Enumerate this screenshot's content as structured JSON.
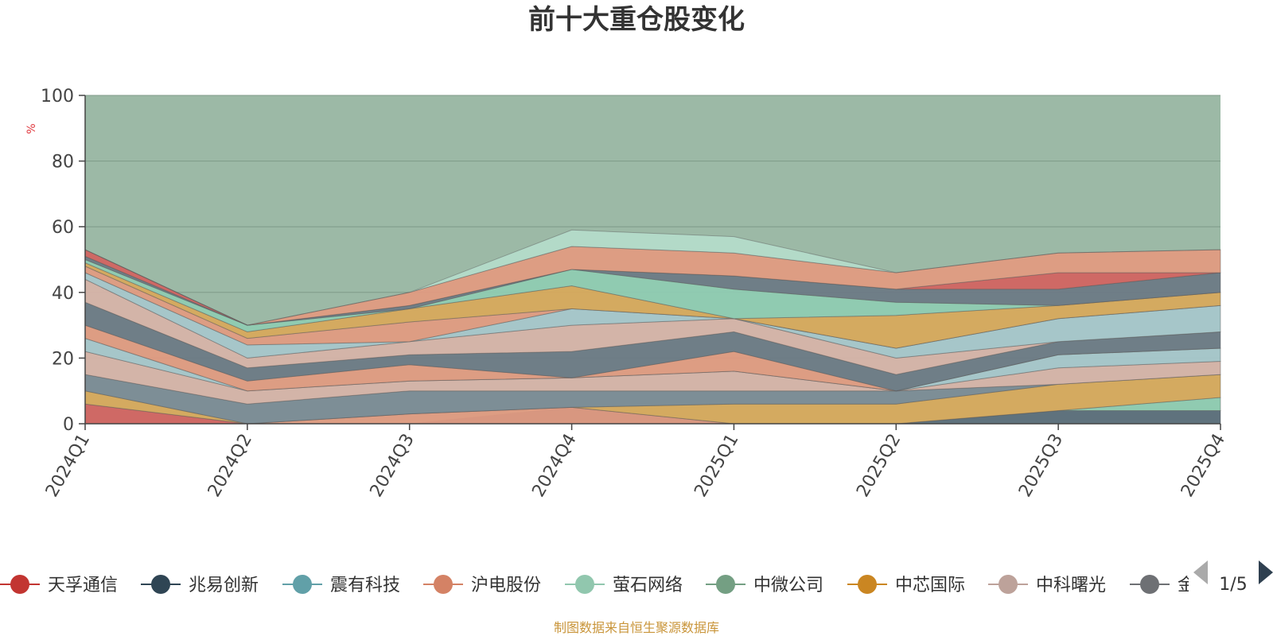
{
  "colors": {
    "background": "#9cb9a6",
    "axis": "#444444",
    "grid": "#7f9a89",
    "unit": "#e0383e",
    "source": "#c9953a",
    "pager_active": "#2f4050",
    "pager_inactive": "#aaaaaa"
  },
  "chart_data": {
    "type": "area",
    "title": "前十大重仓股变化",
    "ylabel": "%",
    "ylim": [
      0,
      100
    ],
    "yticks": [
      0,
      20,
      40,
      60,
      80,
      100
    ],
    "categories": [
      "2024Q1",
      "2024Q2",
      "2024Q3",
      "2024Q4",
      "2025Q1",
      "2025Q2",
      "2025Q3",
      "2025Q4"
    ],
    "bands": [
      {
        "color": "#d4625f",
        "lower": [
          0,
          0,
          0,
          0,
          0,
          0,
          0,
          0
        ],
        "upper": [
          6,
          0,
          0,
          0,
          0,
          0,
          0,
          0
        ]
      },
      {
        "color": "#5a6b7a",
        "lower": [
          0,
          0,
          0,
          0,
          0,
          0,
          0,
          0
        ],
        "upper": [
          0,
          0,
          0,
          5,
          0,
          0,
          4,
          4
        ]
      },
      {
        "color": "#8fccb2",
        "lower": [
          0,
          0,
          0,
          0,
          0,
          0,
          4,
          4
        ],
        "upper": [
          0,
          0,
          0,
          0,
          0,
          0,
          4,
          8
        ]
      },
      {
        "color": "#e39a80",
        "lower": [
          0,
          0,
          0,
          0,
          0,
          0,
          0,
          0
        ],
        "upper": [
          0,
          0,
          3,
          5,
          0,
          0,
          0,
          0
        ]
      },
      {
        "color": "#d9a85a",
        "lower": [
          6,
          0,
          3,
          5,
          0,
          0,
          4,
          8
        ],
        "upper": [
          10,
          0,
          3,
          5,
          6,
          6,
          12,
          15
        ]
      },
      {
        "color": "#7b8a95",
        "lower": [
          10,
          0,
          3,
          5,
          6,
          6,
          12,
          15
        ],
        "upper": [
          15,
          6,
          10,
          10,
          10,
          10,
          12,
          15
        ]
      },
      {
        "color": "#d8b3a8",
        "lower": [
          15,
          6,
          10,
          10,
          10,
          10,
          12,
          15
        ],
        "upper": [
          22,
          10,
          13,
          14,
          16,
          10,
          17,
          19
        ]
      },
      {
        "color": "#a7c7cc",
        "lower": [
          22,
          10,
          13,
          14,
          16,
          10,
          17,
          19
        ],
        "upper": [
          26,
          10,
          13,
          14,
          16,
          10,
          21,
          23
        ]
      },
      {
        "color": "#e39a80",
        "lower": [
          26,
          10,
          13,
          14,
          16,
          10,
          21,
          23
        ],
        "upper": [
          30,
          13,
          18,
          14,
          22,
          10,
          21,
          23
        ]
      },
      {
        "color": "#6b7884",
        "lower": [
          30,
          13,
          18,
          14,
          22,
          10,
          21,
          23
        ],
        "upper": [
          37,
          17,
          21,
          22,
          28,
          15,
          25,
          28
        ]
      },
      {
        "color": "#d8b3a8",
        "lower": [
          37,
          17,
          21,
          22,
          28,
          15,
          25,
          28
        ],
        "upper": [
          44,
          20,
          25,
          30,
          32,
          20,
          25,
          28
        ]
      },
      {
        "color": "#a7c7cc",
        "lower": [
          44,
          20,
          25,
          30,
          32,
          20,
          25,
          28
        ],
        "upper": [
          46,
          24,
          25,
          35,
          32,
          23,
          32,
          36
        ]
      },
      {
        "color": "#e39a80",
        "lower": [
          46,
          24,
          25,
          35,
          32,
          23,
          32,
          36
        ],
        "upper": [
          48,
          26,
          31,
          35,
          32,
          23,
          32,
          36
        ]
      },
      {
        "color": "#d9a85a",
        "lower": [
          48,
          26,
          31,
          35,
          32,
          23,
          32,
          36
        ],
        "upper": [
          49,
          28,
          35,
          42,
          32,
          33,
          36,
          40
        ]
      },
      {
        "color": "#8fccb2",
        "lower": [
          49,
          28,
          35,
          42,
          32,
          33,
          36,
          40
        ],
        "upper": [
          50,
          30,
          35,
          47,
          41,
          37,
          36,
          40
        ]
      },
      {
        "color": "#6b7884",
        "lower": [
          50,
          30,
          35,
          47,
          41,
          37,
          36,
          40
        ],
        "upper": [
          51,
          30,
          36,
          47,
          45,
          41,
          41,
          46
        ]
      },
      {
        "color": "#d4625f",
        "lower": [
          51,
          30,
          36,
          47,
          45,
          41,
          41,
          46
        ],
        "upper": [
          53,
          30,
          36,
          47,
          45,
          41,
          46,
          46
        ]
      },
      {
        "color": "#e39a80",
        "lower": [
          53,
          30,
          36,
          47,
          45,
          41,
          46,
          46
        ],
        "upper": [
          53,
          30,
          40,
          54,
          52,
          46,
          52,
          53
        ]
      },
      {
        "color": "#b5dccb",
        "lower": [
          53,
          30,
          40,
          54,
          52,
          46,
          52,
          53
        ],
        "upper": [
          53,
          30,
          40,
          59,
          57,
          46,
          52,
          53
        ]
      }
    ],
    "legend": [
      {
        "name": "天孚通信",
        "color": "#c23531"
      },
      {
        "name": "兆易创新",
        "color": "#2f4554"
      },
      {
        "name": "震有科技",
        "color": "#61a0a8"
      },
      {
        "name": "沪电股份",
        "color": "#d48265"
      },
      {
        "name": "萤石网络",
        "color": "#91c7ae"
      },
      {
        "name": "中微公司",
        "color": "#749f83"
      },
      {
        "name": "中芯国际",
        "color": "#ca8622"
      },
      {
        "name": "中科曙光",
        "color": "#bda29a"
      },
      {
        "name": "金",
        "color": "#6e7074"
      }
    ],
    "pager": "1/5",
    "source": "制图数据来自恒生聚源数据库"
  }
}
